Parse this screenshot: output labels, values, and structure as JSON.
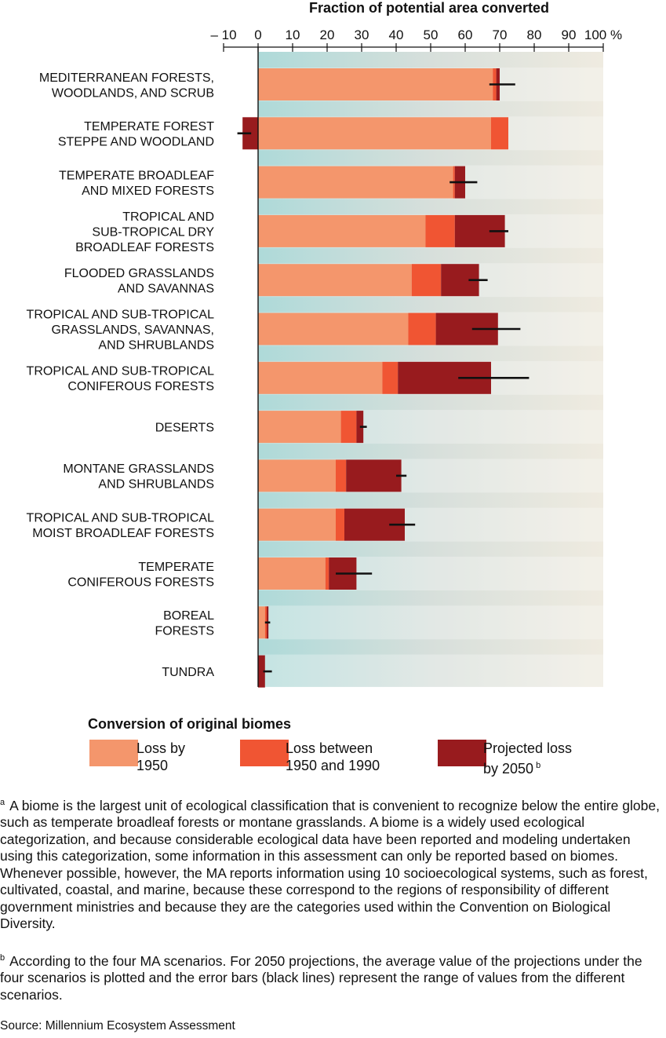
{
  "chart_data": {
    "type": "bar",
    "orientation": "horizontal",
    "stacked": true,
    "title": "Fraction of potential area converted",
    "xlim": [
      -10,
      100
    ],
    "x_ticks": [
      "– 10",
      "0",
      "10",
      "20",
      "30",
      "40",
      "50",
      "60",
      "70",
      "80",
      "90",
      "100 %"
    ],
    "tick_values": [
      -10,
      0,
      10,
      20,
      30,
      40,
      50,
      60,
      70,
      80,
      90,
      100
    ],
    "grid": false,
    "categories": [
      "MEDITERRANEAN FORESTS,\nWOODLANDS, AND SCRUB",
      "TEMPERATE FOREST\nSTEPPE AND WOODLAND",
      "TEMPERATE BROADLEAF\nAND MIXED FORESTS",
      "TROPICAL AND\nSUB-TROPICAL DRY\nBROADLEAF FORESTS",
      "FLOODED GRASSLANDS\nAND SAVANNAS",
      "TROPICAL AND SUB-TROPICAL\nGRASSLANDS, SAVANNAS,\nAND SHRUBLANDS",
      "TROPICAL AND SUB-TROPICAL\nCONIFEROUS FORESTS",
      "DESERTS",
      "MONTANE GRASSLANDS\nAND SHRUBLANDS",
      "TROPICAL AND SUB-TROPICAL\nMOIST BROADLEAF FORESTS",
      "TEMPERATE\nCONIFEROUS FORESTS",
      "BOREAL\nFORESTS",
      "TUNDRA"
    ],
    "series": [
      {
        "name": "Loss by 1950",
        "color": "#f4966c",
        "values": [
          68,
          67.5,
          56.5,
          48.5,
          44.5,
          43.5,
          36,
          24,
          22.5,
          22.5,
          19.5,
          2,
          0
        ]
      },
      {
        "name": "Loss between 1950 and 1990",
        "color": "#f05533",
        "values": [
          1,
          5,
          0.5,
          8.5,
          8.5,
          8,
          4.5,
          4.5,
          3,
          2.5,
          1,
          0.5,
          0
        ]
      },
      {
        "name": "Projected loss by 2050",
        "color": "#981b1e",
        "values": [
          1,
          -4.5,
          3,
          14.5,
          11,
          18,
          27,
          2,
          16,
          17.5,
          8,
          0.5,
          2
        ]
      }
    ],
    "error_bars_2050": [
      [
        67,
        74.5
      ],
      [
        -6,
        -2
      ],
      [
        55.5,
        63.5
      ],
      [
        67,
        72.5
      ],
      [
        61,
        66.5
      ],
      [
        62,
        76
      ],
      [
        58,
        78.5
      ],
      [
        29.5,
        31.5
      ],
      [
        40,
        43
      ],
      [
        38,
        45.5
      ],
      [
        22.5,
        33
      ],
      [
        2,
        3.5
      ],
      [
        1.5,
        4
      ]
    ]
  },
  "legend": {
    "title": "Conversion of original biomes",
    "items": [
      {
        "line1": "Loss by",
        "line2": "1950",
        "sup": "",
        "color": "#f4966c"
      },
      {
        "line1": "Loss between",
        "line2": "1950 and 1990",
        "sup": "",
        "color": "#f05533"
      },
      {
        "line1": "Projected loss",
        "line2": "by 2050",
        "sup": "b",
        "color": "#981b1e"
      }
    ]
  },
  "notes": {
    "a_mark": "a",
    "a_text": "A biome is the largest unit of ecological classification that is convenient to recognize below the entire globe, such as temperate broadleaf forests or montane grasslands.  A biome is a widely used ecological categorization, and because considerable ecological data have been reported and modeling undertaken using this categorization, some information in this assessment can only be reported based on biomes.  Whenever possible, however, the MA reports information using 10 socioecological systems, such as forest, cultivated, coastal, and marine, because these correspond to the regions of responsibility of different government ministries and because they are the categories used within the Convention on Biological Diversity.",
    "b_mark": "b",
    "b_text": "According to the four MA scenarios. For 2050 projections, the average value of the projections under the four scenarios is plotted and the error bars (black lines) represent the range of values from the different scenarios."
  },
  "source": "Source: Millennium Ecosystem Assessment",
  "colors": {
    "background_band_teal": "#b5dcdb",
    "background_band_beige": "#ece8dc",
    "error_bar": "#111111"
  }
}
